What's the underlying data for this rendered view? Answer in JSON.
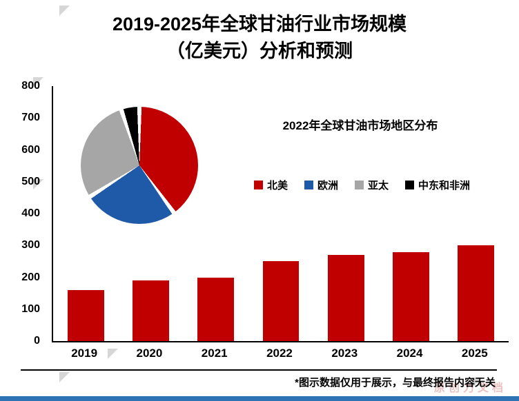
{
  "page": {
    "title_line1": "2019-2025年全球甘油行业市场规模",
    "title_line2": "（亿美元）分析和预测"
  },
  "chart_data": [
    {
      "type": "bar",
      "title": "2019-2025年全球甘油行业市场规模（亿美元）分析和预测",
      "categories": [
        "2019",
        "2020",
        "2021",
        "2022",
        "2023",
        "2024",
        "2025"
      ],
      "values": [
        160,
        190,
        200,
        250,
        270,
        280,
        300
      ],
      "xlabel": "",
      "ylabel": "",
      "ylim": [
        0,
        800
      ],
      "ytick_step": 100,
      "bar_color": "#C00000",
      "grid": false,
      "legend_position": "none"
    },
    {
      "type": "pie",
      "title": "2022年全球甘油市场地区分布",
      "labels": [
        "北美",
        "欧洲",
        "亚太",
        "中东和非洲"
      ],
      "values": [
        40,
        26,
        29,
        5
      ],
      "colors": [
        "#C00000",
        "#1F5AA8",
        "#A6A6A6",
        "#000000"
      ],
      "legend_position": "right-of-pie"
    }
  ],
  "footer": {
    "note": "*图示数据仅用于展示，与最终报告内容无关"
  },
  "watermark": {
    "text": "原创力文档"
  },
  "theme": {
    "axis_color": "#000000",
    "bottom_strip_color": "#2E74B5",
    "corner_mark_color": "#D6D6D6"
  }
}
